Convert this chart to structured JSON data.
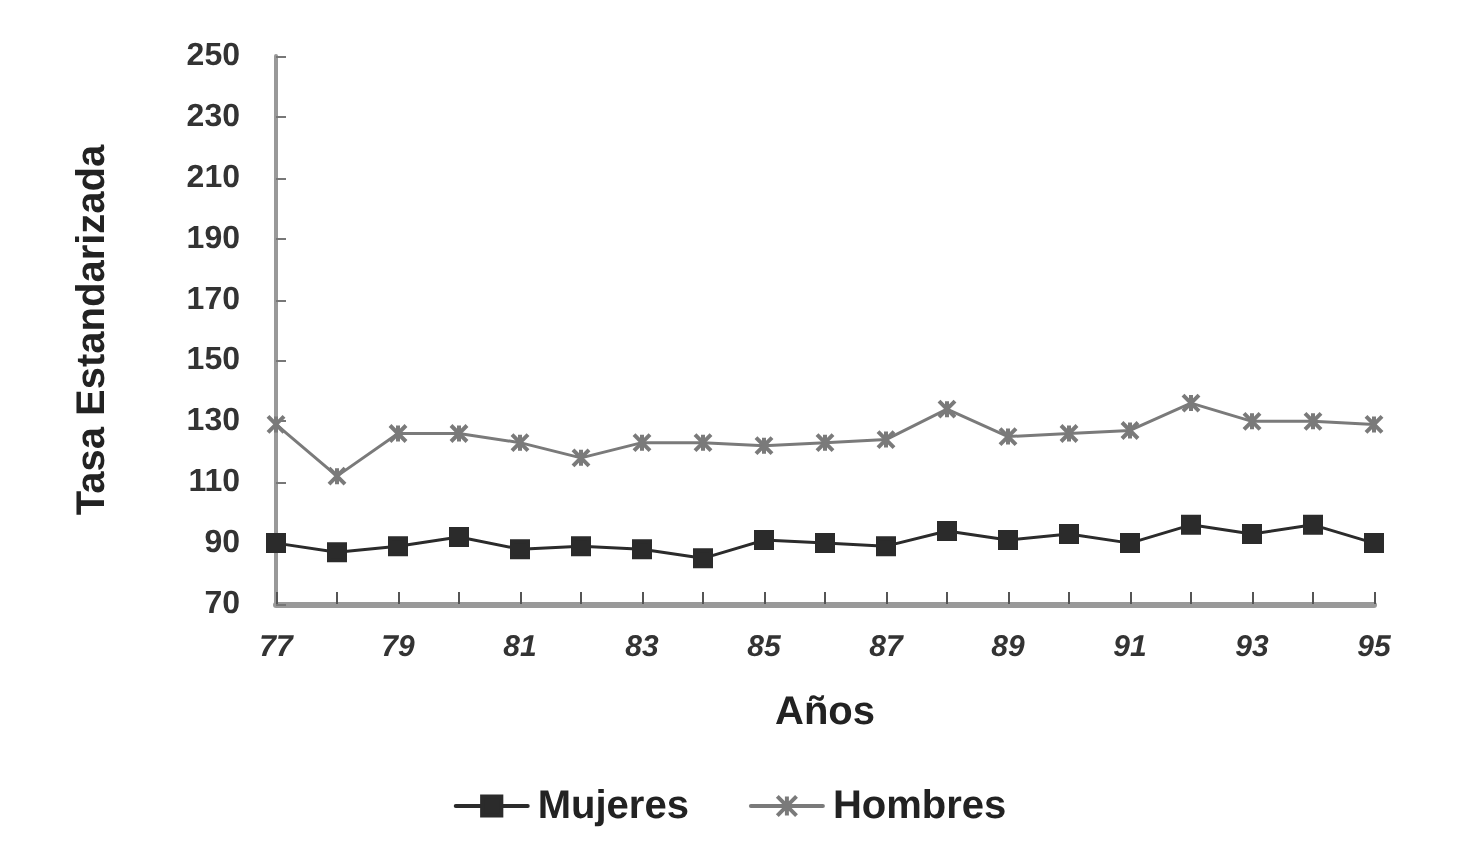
{
  "chart_data": {
    "type": "line",
    "xlabel": "Años",
    "ylabel": "Tasa Estandarizada",
    "x": [
      77,
      78,
      79,
      80,
      81,
      82,
      83,
      84,
      85,
      86,
      87,
      88,
      89,
      90,
      91,
      92,
      93,
      94,
      95
    ],
    "series": [
      {
        "name": "Mujeres",
        "color": "#2b2b2b",
        "marker": "square",
        "values": [
          90,
          87,
          89,
          92,
          88,
          89,
          88,
          85,
          91,
          90,
          89,
          94,
          91,
          93,
          90,
          96,
          93,
          96,
          90
        ]
      },
      {
        "name": "Hombres",
        "color": "#7a7a7a",
        "marker": "cross",
        "values": [
          129,
          112,
          126,
          126,
          123,
          118,
          123,
          123,
          122,
          123,
          124,
          134,
          125,
          126,
          127,
          136,
          130,
          130,
          129
        ]
      }
    ],
    "xlim": [
      77,
      95
    ],
    "xticks": [
      77,
      {
        "value": 78,
        "label": null
      },
      79,
      {
        "value": 80,
        "label": null
      },
      81,
      {
        "value": 82,
        "label": null
      },
      83,
      {
        "value": 84,
        "label": null
      },
      85,
      {
        "value": 86,
        "label": null
      },
      87,
      {
        "value": 88,
        "label": null
      },
      89,
      {
        "value": 90,
        "label": null
      },
      91,
      {
        "value": 92,
        "label": null
      },
      93,
      {
        "value": 94,
        "label": null
      },
      95
    ],
    "ylim": [
      70,
      250
    ],
    "yticks": [
      70,
      90,
      110,
      130,
      150,
      170,
      190,
      210,
      230,
      250
    ],
    "grid": false,
    "legend": "bottom",
    "line_style": "solid"
  }
}
